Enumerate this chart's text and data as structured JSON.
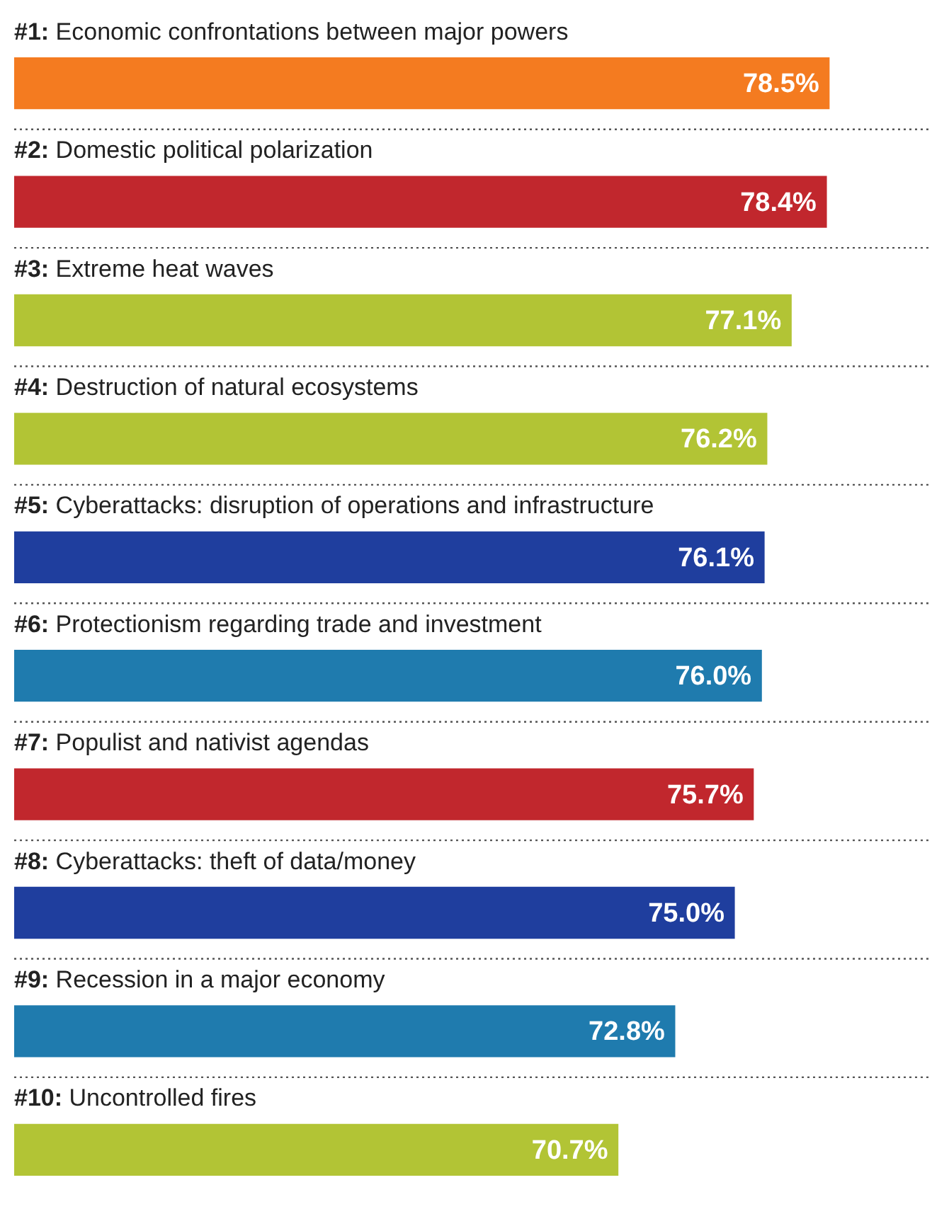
{
  "chart_data": {
    "type": "bar",
    "orientation": "horizontal",
    "categories": [
      "#1: Economic confrontations between major powers",
      "#2: Domestic political polarization",
      "#3: Extreme heat waves",
      "#4: Destruction of natural ecosystems",
      "#5: Cyberattacks: disruption of operations and infrastructure",
      "#6: Protectionism regarding trade and investment",
      "#7: Populist and nativist agendas",
      "#8: Cyberattacks: theft of data/money",
      "#9: Recession in a major economy",
      "#10: Uncontrolled fires"
    ],
    "values": [
      78.5,
      78.4,
      77.1,
      76.2,
      76.1,
      76.0,
      75.7,
      75.0,
      72.8,
      70.7
    ],
    "value_labels": [
      "78.5%",
      "78.4%",
      "77.1%",
      "76.2%",
      "76.1%",
      "76.0%",
      "75.7%",
      "75.0%",
      "72.8%",
      "70.7%"
    ],
    "colors": [
      "#f47b20",
      "#c1272d",
      "#b2c435",
      "#b2c435",
      "#1f3e9e",
      "#1f7bae",
      "#c1272d",
      "#1f3e9e",
      "#1f7bae",
      "#b2c435"
    ],
    "xlim": [
      48.4,
      82.3
    ],
    "tick_labels": false,
    "grid": "y",
    "legend": false
  }
}
